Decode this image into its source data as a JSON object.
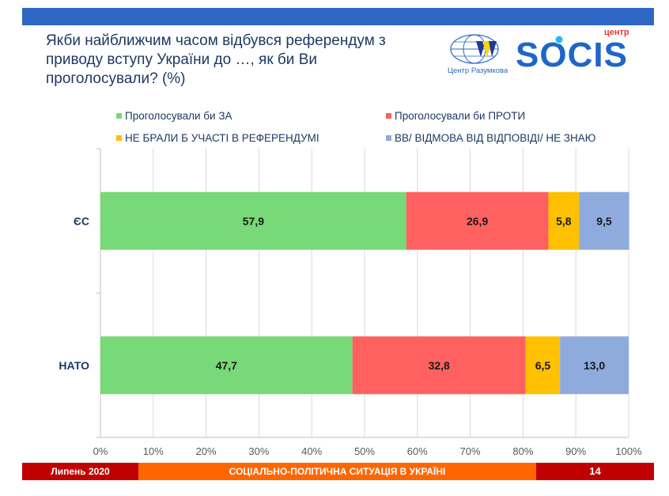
{
  "header": {
    "title": "Якби найближчим часом відбувся референдум з приводу вступу України до …, як би Ви проголосували? (%)",
    "razumkov_caption": "Центр Разумкова",
    "socis_small": "центр",
    "socis_big": "SOCIS"
  },
  "colors": {
    "bar_top": "#2e67c3",
    "for": "#77d977",
    "against": "#ff6161",
    "not_participate": "#ffc000",
    "dont_know": "#8faadc",
    "title_text": "#1f3864",
    "footer_red": "#c00000",
    "footer_orange": "#ff6600"
  },
  "chart_data": {
    "type": "bar",
    "orientation": "horizontal",
    "stacked": true,
    "categories": [
      "ЄС",
      "НАТО"
    ],
    "series": [
      {
        "name": "Проголосували би ЗА",
        "color": "#77d977",
        "values": [
          57.9,
          47.7
        ]
      },
      {
        "name": "Проголосували би ПРОТИ",
        "color": "#ff6161",
        "values": [
          26.9,
          32.8
        ]
      },
      {
        "name": "НЕ БРАЛИ Б УЧАСТІ В РЕФЕРЕНДУМІ",
        "color": "#ffc000",
        "values": [
          5.8,
          6.5
        ]
      },
      {
        "name": "ВВ/ ВІДМОВА ВІД ВІДПОВІДІ/ НЕ ЗНАЮ",
        "color": "#8faadc",
        "values": [
          9.5,
          13.0
        ]
      }
    ],
    "value_labels": [
      [
        "57,9",
        "26,9",
        "5,8",
        "9,5"
      ],
      [
        "47,7",
        "32,8",
        "6,5",
        "13,0"
      ]
    ],
    "xlim": [
      0,
      100
    ],
    "xticks": [
      "0%",
      "10%",
      "20%",
      "30%",
      "40%",
      "50%",
      "60%",
      "70%",
      "80%",
      "90%",
      "100%"
    ],
    "grid": true,
    "legend_position": "top"
  },
  "footer": {
    "date": "Липень 2020",
    "subtitle": "СОЦІАЛЬНО-ПОЛІТИЧНА СИТУАЦІЯ В УКРАЇНІ",
    "page_number": "14"
  }
}
